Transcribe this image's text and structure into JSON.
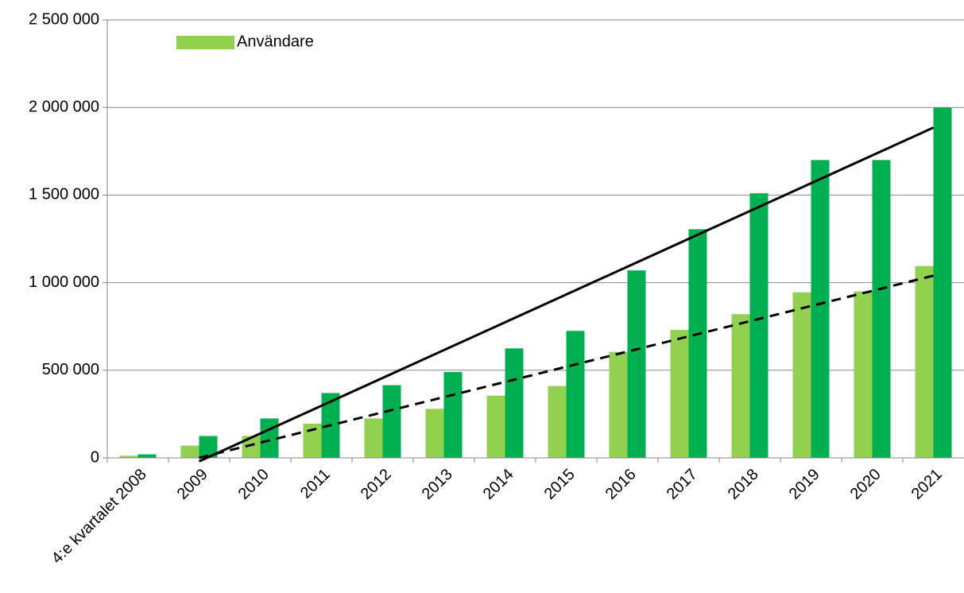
{
  "chart_data": {
    "type": "bar",
    "categories": [
      "4:e kvartalet 2008",
      "2009",
      "2010",
      "2011",
      "2012",
      "2013",
      "2014",
      "2015",
      "2016",
      "2017",
      "2018",
      "2019",
      "2020",
      "2021"
    ],
    "series": [
      {
        "name": "Användare",
        "color": "#92d050",
        "values": [
          12000,
          70000,
          125000,
          195000,
          225000,
          280000,
          355000,
          410000,
          605000,
          730000,
          820000,
          945000,
          950000,
          1095000
        ]
      },
      {
        "color": "#00b050",
        "values": [
          20000,
          125000,
          225000,
          370000,
          415000,
          490000,
          625000,
          725000,
          1070000,
          1305000,
          1510000,
          1700000,
          1700000,
          2000000
        ]
      }
    ],
    "trendlines": [
      {
        "color": "#000000",
        "dash": false,
        "x": [
          "2009",
          "2021"
        ],
        "values": [
          -20000,
          1885000
        ]
      },
      {
        "color": "#000000",
        "dash": true,
        "x": [
          "2009",
          "2021"
        ],
        "values": [
          0,
          1040000
        ]
      }
    ],
    "ylim": [
      0,
      2500000
    ],
    "yticks": [
      {
        "value": 0,
        "label": "0"
      },
      {
        "value": 500000,
        "label": "500 000"
      },
      {
        "value": 1000000,
        "label": "1 000 000"
      },
      {
        "value": 1500000,
        "label": "1 500 000"
      },
      {
        "value": 2000000,
        "label": "2 000 000"
      },
      {
        "value": 2500000,
        "label": "2 500 000"
      }
    ],
    "grid": true,
    "legend": "top-left"
  }
}
